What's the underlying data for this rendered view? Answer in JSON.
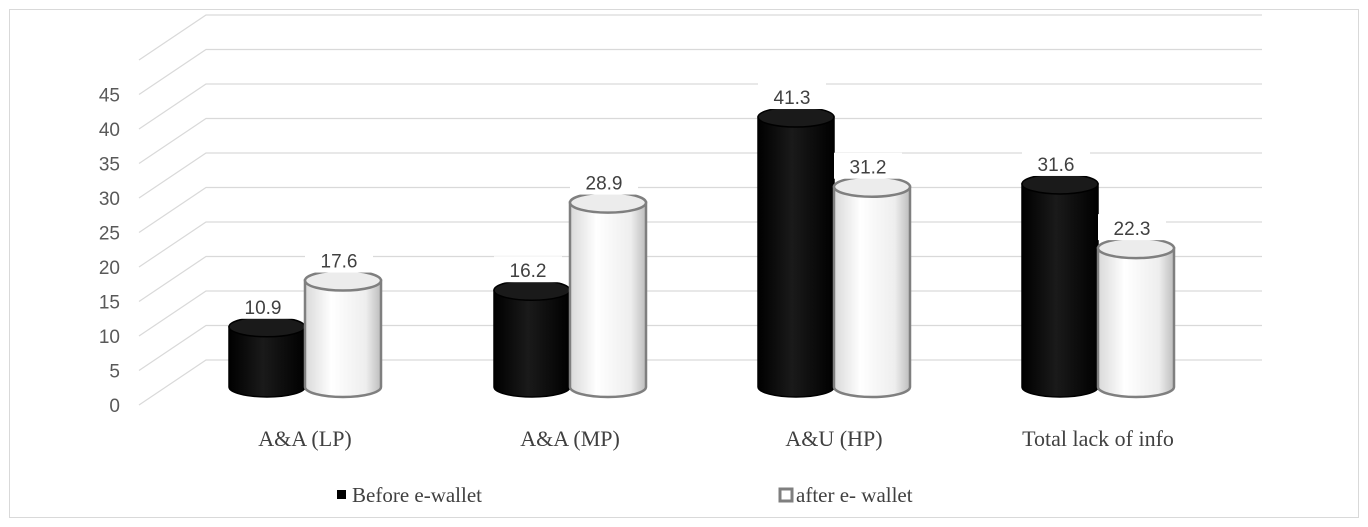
{
  "chart_data": {
    "type": "bar",
    "categories": [
      "A&A (LP)",
      "A&A (MP)",
      "A&U (HP)",
      "Total lack of info"
    ],
    "series": [
      {
        "name": "Before e-wallet",
        "values": [
          10.9,
          16.2,
          41.3,
          31.6
        ],
        "color": "#000000"
      },
      {
        "name": "after e- wallet",
        "values": [
          17.6,
          28.9,
          31.2,
          22.3
        ],
        "color": "#ffffff"
      }
    ],
    "y_ticks": [
      "0",
      "5",
      "10",
      "15",
      "20",
      "25",
      "30",
      "35",
      "40",
      "45"
    ],
    "ylim": [
      0,
      45
    ],
    "grid": true,
    "legend_position": "bottom",
    "shape": "3d-cylinder",
    "title": "",
    "xlabel": "",
    "ylabel": ""
  }
}
